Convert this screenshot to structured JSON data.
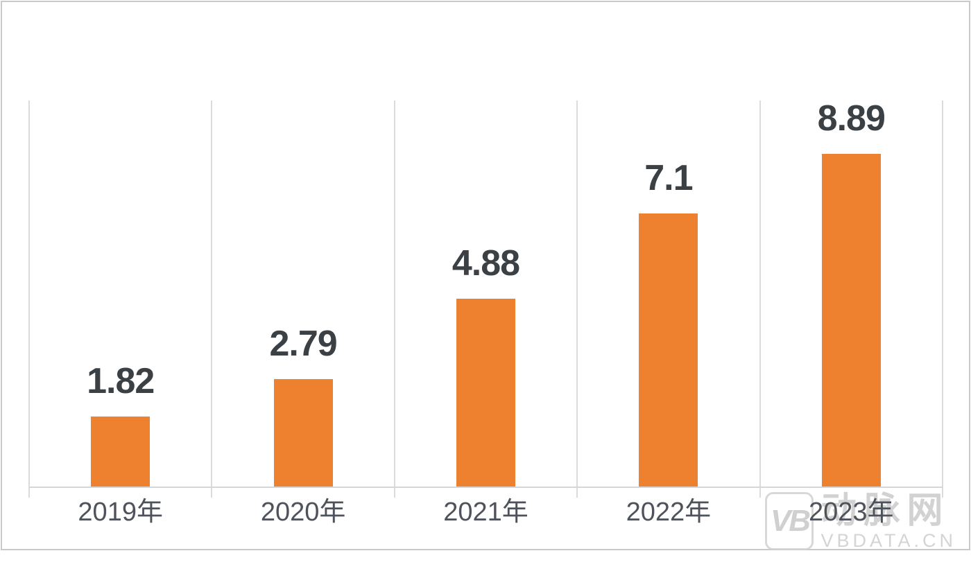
{
  "chart_data": {
    "type": "bar",
    "categories": [
      "2019年",
      "2020年",
      "2021年",
      "2022年",
      "2023年"
    ],
    "values": [
      1.82,
      2.79,
      4.88,
      7.1,
      8.89
    ],
    "value_labels": [
      "1.82",
      "2.79",
      "4.88",
      "7.1",
      "8.89"
    ],
    "title": "",
    "xlabel": "",
    "ylabel": "",
    "ylim": [
      0,
      10
    ],
    "legend_position": "none",
    "grid": "vertical category separators only",
    "bar_color": "#EE8130",
    "value_label_color": "#3B4045",
    "axis_label_color": "#4E535B",
    "gridline_color": "#DBDBDB",
    "frame_border_color": "#C9C9C9"
  },
  "watermark": {
    "logo_text": "VB",
    "cn_text": "动脉网",
    "url": "VBDATA.CN"
  }
}
